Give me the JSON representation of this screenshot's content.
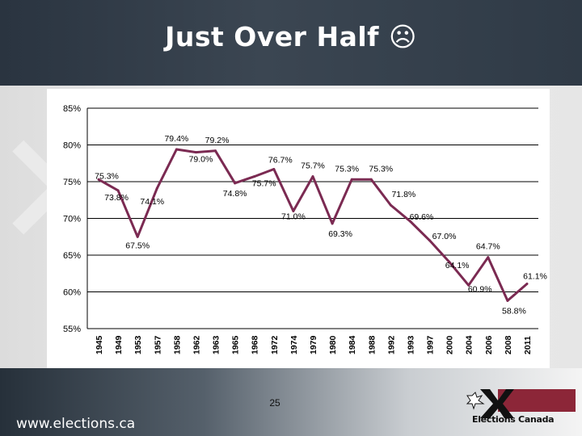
{
  "slide": {
    "title": "Just Over Half",
    "title_emoji": "☹",
    "page_number": "25",
    "url": "www.elections.ca",
    "logo_text": "Elections Canada"
  },
  "colors": {
    "line": "#7b2a52",
    "grid": "#000000",
    "logo_red": "#8c2638"
  },
  "chart_data": {
    "type": "line",
    "title": "",
    "xlabel": "",
    "ylabel": "",
    "ylim": [
      55,
      85
    ],
    "yticks": [
      55,
      60,
      65,
      70,
      75,
      80,
      85
    ],
    "ytick_labels": [
      "55%",
      "60%",
      "65%",
      "70%",
      "75%",
      "80%",
      "85%"
    ],
    "grid": "horizontal",
    "categories": [
      "1945",
      "1949",
      "1953",
      "1957",
      "1958",
      "1962",
      "1963",
      "1965",
      "1968",
      "1972",
      "1974",
      "1979",
      "1980",
      "1984",
      "1988",
      "1992",
      "1993",
      "1997",
      "2000",
      "2004",
      "2006",
      "2008",
      "2011"
    ],
    "values": [
      75.3,
      73.8,
      67.5,
      74.1,
      79.4,
      79.0,
      79.2,
      74.8,
      75.7,
      76.7,
      71.0,
      75.7,
      69.3,
      75.3,
      75.3,
      71.8,
      69.6,
      67.0,
      64.1,
      60.9,
      64.7,
      58.8,
      61.1
    ],
    "data_labels": [
      "75.3%",
      "73.8%",
      "67.5%",
      "74.1%",
      "79.4%",
      "79.0%",
      "79.2%",
      "74.8%",
      "75.7%",
      "76.7%",
      "71.0%",
      "75.7%",
      "69.3%",
      "75.3%",
      "75.3%",
      "71.8%",
      "69.6%",
      "67.0%",
      "64.1%",
      "60.9%",
      "64.7%",
      "58.8%",
      "61.1%"
    ]
  }
}
